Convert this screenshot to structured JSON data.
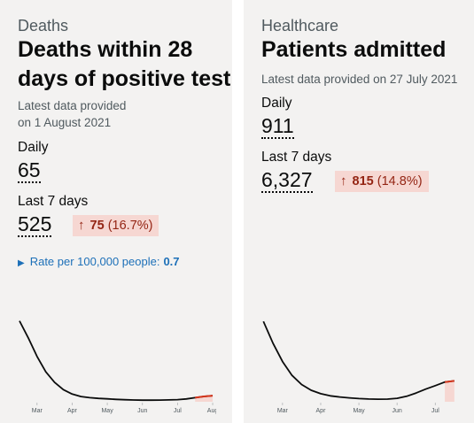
{
  "deaths": {
    "category": "Deaths",
    "title_line1": "Deaths within 28",
    "title_line2": "days of positive test",
    "updated_line1": "Latest data provided",
    "updated_line2": "on 1 August 2021",
    "daily_label": "Daily",
    "daily_value": "65",
    "weekly_label": "Last 7 days",
    "weekly_value": "525",
    "change_arrow": "↑",
    "change_value": "75",
    "change_percent": "(16.7%)",
    "rate_label": "Rate per 100,000 people:",
    "rate_value": "0.7",
    "rate_icon": "triangle-right-icon"
  },
  "healthcare": {
    "category": "Healthcare",
    "title": "Patients admitted",
    "updated": "Latest data provided on 27 July 2021",
    "daily_label": "Daily",
    "daily_value": "911",
    "weekly_label": "Last 7 days",
    "weekly_value": "6,327",
    "change_arrow": "↑",
    "change_value": "815",
    "change_percent": "(14.8%)"
  },
  "colors": {
    "card_bg": "#f3f2f1",
    "line": "#0b0c0c",
    "highlight_line": "#d4351c",
    "highlight_fill": "#f6d7d2",
    "link": "#1d70b8"
  },
  "chart_data": [
    {
      "type": "line",
      "name": "deaths-sparkline",
      "x_ticks": [
        "Mar",
        "Apr",
        "May",
        "Jun",
        "Jul",
        "Aug"
      ],
      "x_tick_pos": [
        0.5,
        1.5,
        2.5,
        3.5,
        4.5,
        5.5
      ],
      "x": [
        0.0,
        0.25,
        0.5,
        0.75,
        1.0,
        1.25,
        1.5,
        1.75,
        2.0,
        2.25,
        2.5,
        2.75,
        3.0,
        3.25,
        3.5,
        3.75,
        4.0,
        4.25,
        4.5,
        4.75,
        5.0,
        5.25,
        5.5
      ],
      "y": [
        1000,
        790,
        560,
        370,
        240,
        150,
        95,
        65,
        50,
        42,
        36,
        30,
        25,
        22,
        20,
        20,
        21,
        23,
        26,
        35,
        50,
        66,
        75
      ],
      "ylim": [
        0,
        1050
      ],
      "xlim": [
        -0.1,
        5.6
      ],
      "highlight_from_x": 5.0
    },
    {
      "type": "line",
      "name": "admissions-sparkline",
      "x_ticks": [
        "Mar",
        "Apr",
        "May",
        "Jun",
        "Jul"
      ],
      "x_tick_pos": [
        0.5,
        1.5,
        2.5,
        3.5,
        4.5
      ],
      "x": [
        0.0,
        0.25,
        0.5,
        0.75,
        1.0,
        1.25,
        1.5,
        1.75,
        2.0,
        2.25,
        2.5,
        2.75,
        3.0,
        3.25,
        3.5,
        3.75,
        4.0,
        4.25,
        4.5,
        4.75,
        5.0
      ],
      "y": [
        3500,
        2550,
        1750,
        1150,
        750,
        500,
        350,
        260,
        210,
        170,
        140,
        120,
        110,
        115,
        150,
        240,
        380,
        550,
        700,
        860,
        911
      ],
      "ylim": [
        0,
        3700
      ],
      "xlim": [
        -0.1,
        5.05
      ],
      "highlight_from_x": 4.55
    }
  ]
}
